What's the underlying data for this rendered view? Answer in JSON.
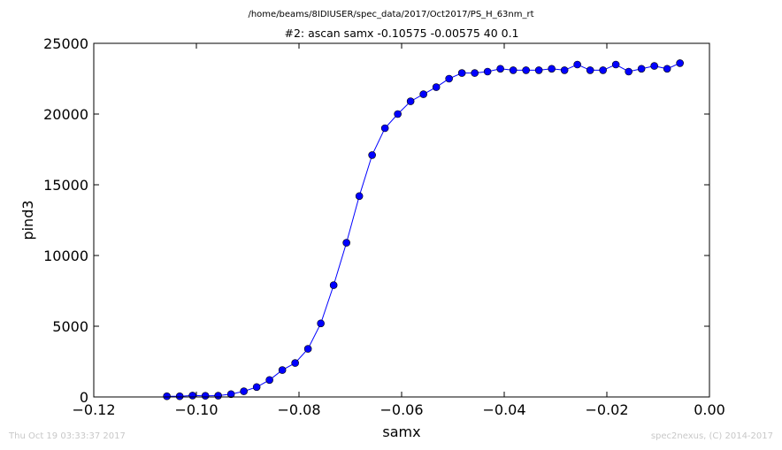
{
  "suptitle": "/home/beams/8IDIUSER/spec_data/2017/Oct2017/PS_H_63nm_rt",
  "footer": {
    "timestamp": "Thu Oct 19 03:33:37 2017",
    "credit": "spec2nexus, (C) 2014-2017"
  },
  "chart_data": {
    "type": "line",
    "title": "#2: ascan  samx -0.10575 -0.00575  40 0.1",
    "xlabel": "samx",
    "ylabel": "pind3",
    "xlim": [
      -0.12,
      0.0
    ],
    "ylim": [
      0,
      25000
    ],
    "xticks": [
      -0.12,
      -0.1,
      -0.08,
      -0.06,
      -0.04,
      -0.02,
      0.0
    ],
    "xtick_labels": [
      "−0.12",
      "−0.10",
      "−0.08",
      "−0.06",
      "−0.04",
      "−0.02",
      "0.00"
    ],
    "yticks": [
      0,
      5000,
      10000,
      15000,
      20000,
      25000
    ],
    "ytick_labels": [
      "0",
      "5000",
      "10000",
      "15000",
      "20000",
      "25000"
    ],
    "grid": false,
    "line_color": "#0000ff",
    "marker": "circle",
    "series": [
      {
        "x": [
          -0.10575,
          -0.10325,
          -0.10075,
          -0.09825,
          -0.09575,
          -0.09325,
          -0.09075,
          -0.08825,
          -0.08575,
          -0.08325,
          -0.08075,
          -0.07825,
          -0.07575,
          -0.07325,
          -0.07075,
          -0.06825,
          -0.06575,
          -0.06325,
          -0.06075,
          -0.05825,
          -0.05575,
          -0.05325,
          -0.05075,
          -0.04825,
          -0.04575,
          -0.04325,
          -0.04075,
          -0.03825,
          -0.03575,
          -0.03325,
          -0.03075,
          -0.02825,
          -0.02575,
          -0.02325,
          -0.02075,
          -0.01825,
          -0.01575,
          -0.01325,
          -0.01075,
          -0.00825,
          -0.00575
        ],
        "y": [
          50,
          50,
          100,
          80,
          90,
          200,
          400,
          700,
          1200,
          1900,
          2400,
          3400,
          5200,
          7900,
          10900,
          14200,
          17100,
          19000,
          20000,
          20900,
          21400,
          21900,
          22500,
          22900,
          22900,
          23000,
          23200,
          23100,
          23100,
          23100,
          23200,
          23100,
          23500,
          23100,
          23100,
          23500,
          23000,
          23200,
          23400,
          23200,
          23600
        ]
      }
    ]
  }
}
